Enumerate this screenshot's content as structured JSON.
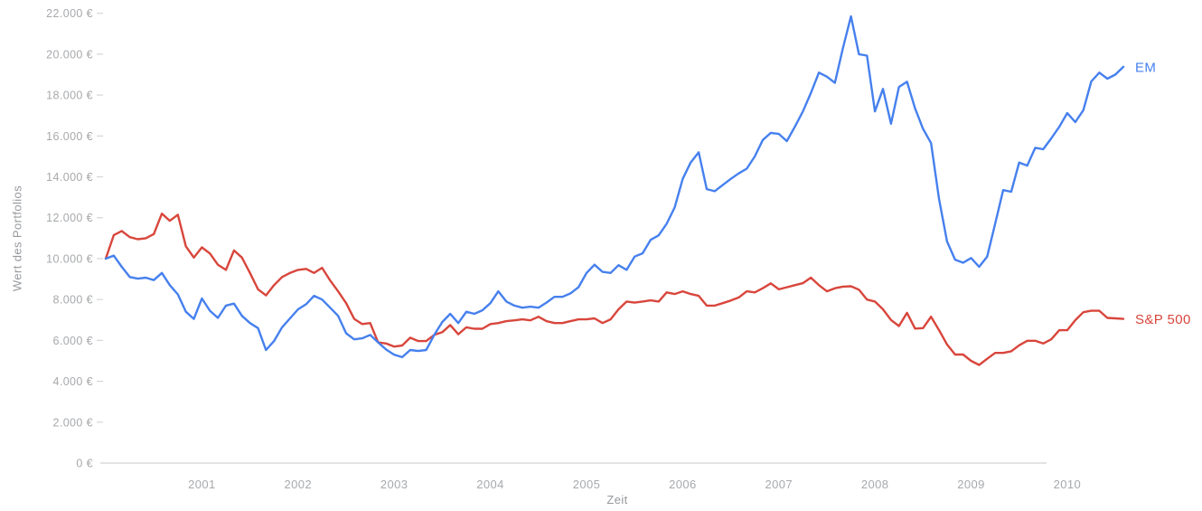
{
  "chart_data": {
    "type": "line",
    "title": "",
    "xlabel": "Zeit",
    "ylabel": "Wert des Portfolios",
    "x_unit": "monthly",
    "x_start": "2000-01",
    "x_end": "2010-08",
    "x_tick_labels": [
      "2001",
      "2002",
      "2003",
      "2004",
      "2005",
      "2006",
      "2007",
      "2008",
      "2009",
      "2010"
    ],
    "y_tick_labels": [
      "0 €",
      "2.000 €",
      "4.000 €",
      "6.000 €",
      "8.000 €",
      "10.000 €",
      "12.000 €",
      "14.000 €",
      "16.000 €",
      "18.000 €",
      "20.000 €",
      "22.000 €"
    ],
    "y_tick_step": 2000,
    "ylim": [
      0,
      22000
    ],
    "grid": false,
    "legend_position": "line-end-labels",
    "axis_colors": {
      "tick_label": "#a7a9ac",
      "axis_title": "#96989c",
      "axis_line": "#e3e3e3",
      "tick_mark": "#d6d6d6"
    },
    "series": [
      {
        "name": "EM",
        "color": "#4680ee",
        "values": [
          10000,
          10150,
          9600,
          9100,
          9020,
          9070,
          8950,
          9300,
          8700,
          8250,
          7400,
          7050,
          8050,
          7450,
          7100,
          7700,
          7800,
          7200,
          6850,
          6600,
          5530,
          5970,
          6640,
          7080,
          7520,
          7770,
          8180,
          8000,
          7600,
          7200,
          6350,
          6050,
          6100,
          6270,
          5900,
          5550,
          5300,
          5180,
          5530,
          5480,
          5530,
          6270,
          6900,
          7300,
          6850,
          7400,
          7300,
          7470,
          7820,
          8400,
          7900,
          7700,
          7600,
          7650,
          7600,
          7850,
          8130,
          8130,
          8300,
          8600,
          9300,
          9700,
          9350,
          9300,
          9680,
          9450,
          10100,
          10260,
          10920,
          11140,
          11700,
          12500,
          13900,
          14700,
          15200,
          13400,
          13300,
          13600,
          13900,
          14170,
          14400,
          15000,
          15800,
          16150,
          16100,
          15750,
          16450,
          17200,
          18100,
          19100,
          18900,
          18600,
          20300,
          21850,
          20000,
          19930,
          17200,
          18300,
          16600,
          18400,
          18650,
          17350,
          16350,
          15650,
          12900,
          10840,
          9950,
          9800,
          10030,
          9600,
          10100,
          11700,
          13350,
          13270,
          14700,
          14550,
          15420,
          15350,
          15880,
          16450,
          17120,
          16680,
          17260,
          18670,
          19100,
          18800,
          19000,
          19380
        ]
      },
      {
        "name": "S&P 500",
        "color": "#d8463c",
        "values": [
          10000,
          11150,
          11350,
          11050,
          10950,
          11000,
          11200,
          12200,
          11850,
          12150,
          10600,
          10050,
          10550,
          10250,
          9700,
          9450,
          10400,
          10050,
          9300,
          8500,
          8200,
          8700,
          9100,
          9300,
          9450,
          9500,
          9300,
          9550,
          8930,
          8400,
          7820,
          7050,
          6800,
          6850,
          5900,
          5850,
          5700,
          5750,
          6130,
          5970,
          5970,
          6270,
          6400,
          6750,
          6300,
          6640,
          6570,
          6570,
          6800,
          6850,
          6940,
          6980,
          7030,
          6980,
          7160,
          6940,
          6850,
          6850,
          6940,
          7030,
          7030,
          7080,
          6850,
          7030,
          7520,
          7900,
          7850,
          7900,
          7960,
          7900,
          8350,
          8270,
          8400,
          8270,
          8180,
          7700,
          7700,
          7820,
          7950,
          8100,
          8400,
          8350,
          8550,
          8790,
          8500,
          8600,
          8700,
          8800,
          9070,
          8700,
          8400,
          8550,
          8630,
          8650,
          8480,
          8000,
          7900,
          7520,
          7000,
          6700,
          7350,
          6580,
          6600,
          7160,
          6500,
          5800,
          5310,
          5310,
          5000,
          4800,
          5100,
          5390,
          5390,
          5470,
          5760,
          5980,
          5980,
          5850,
          6050,
          6500,
          6500,
          6990,
          7380,
          7450,
          7450,
          7100,
          7080,
          7050
        ]
      }
    ]
  }
}
